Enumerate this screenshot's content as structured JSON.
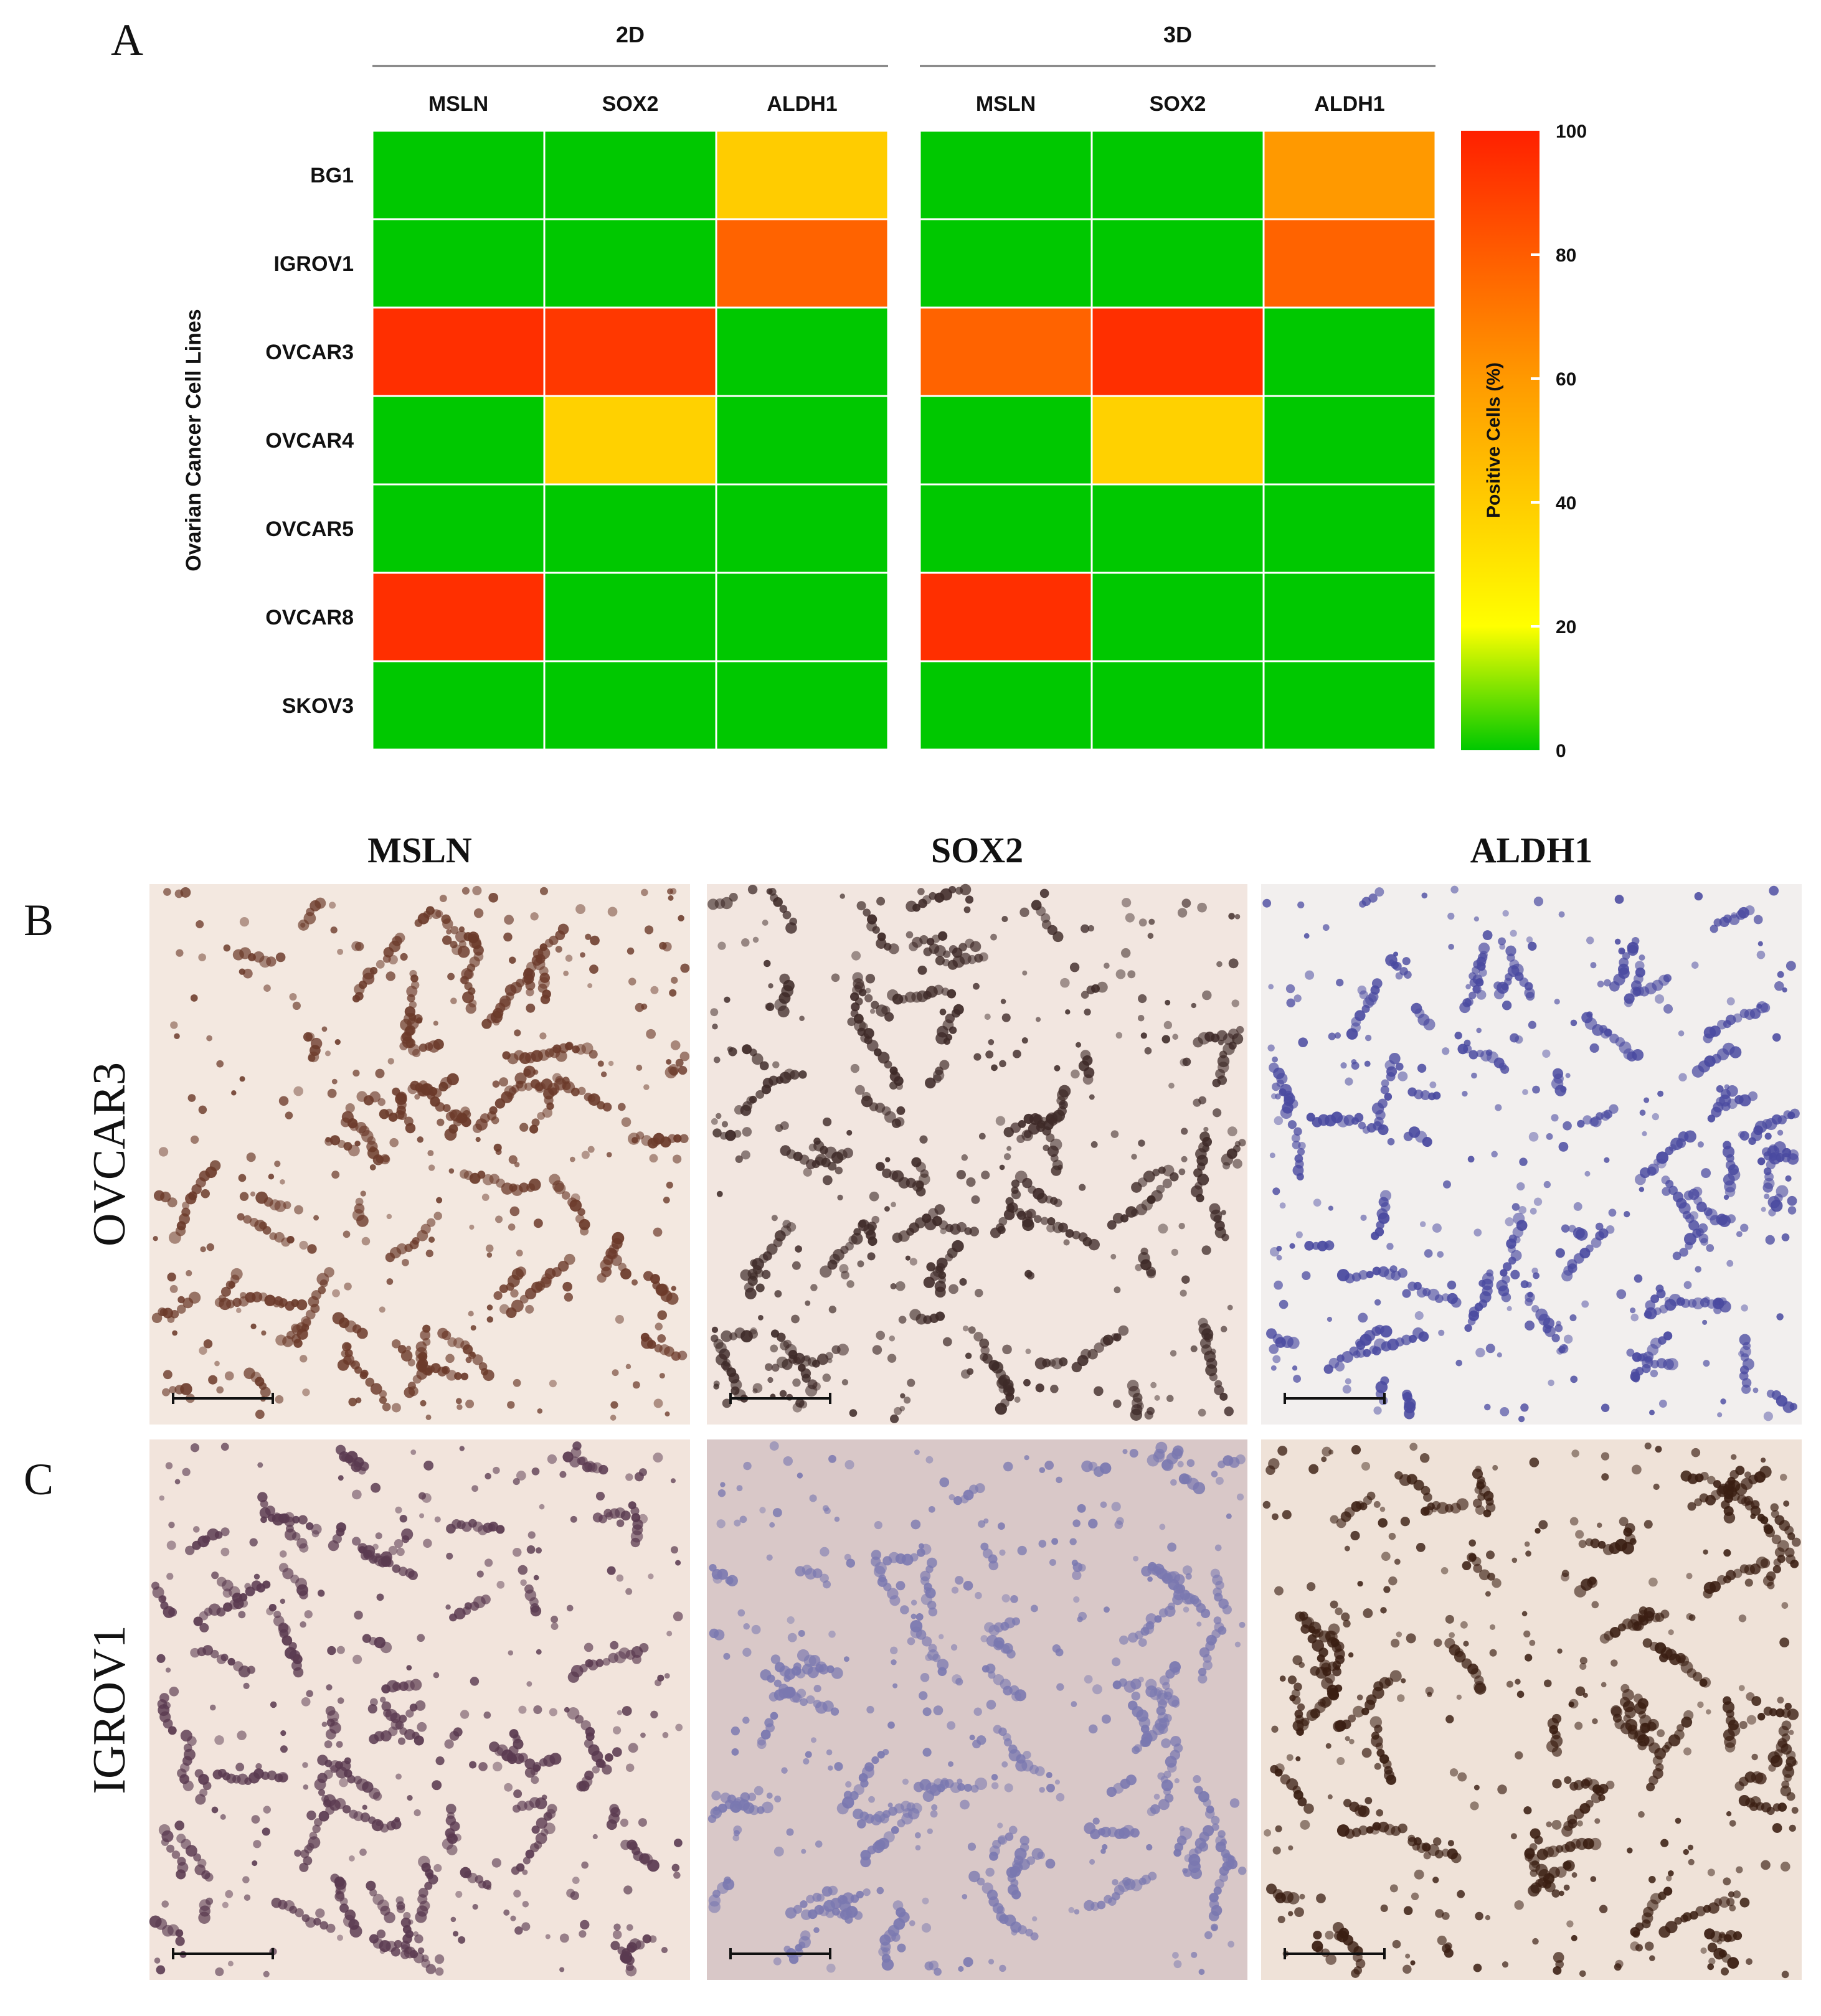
{
  "panel_letters": {
    "a": "A",
    "b": "B",
    "c": "C"
  },
  "chart_data": [
    {
      "type": "heatmap",
      "panel": "A",
      "ylabel": "Ovarian Cancer Cell Lines",
      "groups": [
        {
          "name": "2D",
          "columns": [
            "MSLN",
            "SOX2",
            "ALDH1"
          ]
        },
        {
          "name": "3D",
          "columns": [
            "MSLN",
            "SOX2",
            "ALDH1"
          ]
        }
      ],
      "rows": [
        "BG1",
        "IGROV1",
        "OVCAR3",
        "OVCAR4",
        "OVCAR5",
        "OVCAR8",
        "SKOV3"
      ],
      "values_2d": [
        [
          0,
          0,
          40
        ],
        [
          0,
          0,
          78
        ],
        [
          95,
          92,
          0
        ],
        [
          0,
          38,
          0
        ],
        [
          0,
          0,
          0
        ],
        [
          95,
          0,
          0
        ],
        [
          0,
          0,
          0
        ]
      ],
      "values_3d": [
        [
          0,
          0,
          60
        ],
        [
          0,
          0,
          78
        ],
        [
          78,
          95,
          0
        ],
        [
          0,
          38,
          0
        ],
        [
          0,
          0,
          0
        ],
        [
          95,
          0,
          0
        ],
        [
          0,
          0,
          0
        ]
      ],
      "colorbar": {
        "label": "Positive Cells (%)",
        "range": [
          0,
          100
        ],
        "ticks": [
          0,
          20,
          40,
          60,
          80,
          100
        ],
        "stops": [
          {
            "value": 0,
            "color": "#00c800"
          },
          {
            "value": 20,
            "color": "#ffff00"
          },
          {
            "value": 60,
            "color": "#ff9900"
          },
          {
            "value": 100,
            "color": "#ff2000"
          }
        ]
      }
    },
    {
      "type": "image-grid",
      "panel": "B-C",
      "columns": [
        "MSLN",
        "SOX2",
        "ALDH1"
      ],
      "rows": [
        "OVCAR3",
        "IGROV1"
      ],
      "row_panels": [
        "B",
        "C"
      ],
      "stain_colors": [
        [
          "#6b3a2a",
          "#3e2a28",
          "#4a4aa0"
        ],
        [
          "#5a3a50",
          "#7a78b0",
          "#3a1e12"
        ]
      ],
      "tile_backgrounds": [
        [
          "#f3e8e0",
          "#f2e6e0",
          "#f2efee"
        ],
        [
          "#f2e4dc",
          "#d9c8c8",
          "#efe2d8"
        ]
      ]
    }
  ]
}
